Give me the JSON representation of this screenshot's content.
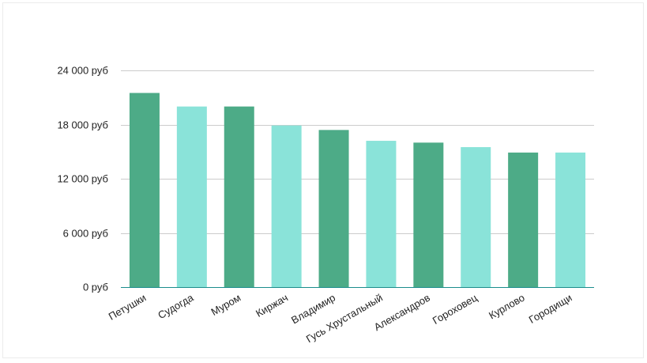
{
  "chart_data": {
    "type": "bar",
    "categories": [
      "Петушки",
      "Судогда",
      "Муром",
      "Киржач",
      "Владимир",
      "Гусь Хрустальный",
      "Александров",
      "Гороховец",
      "Курлово",
      "Городищи"
    ],
    "values": [
      21500,
      20000,
      20000,
      17900,
      17400,
      16200,
      16000,
      15500,
      14900,
      14900
    ],
    "yticks": [
      "0 руб",
      "6 000 руб",
      "12 000 руб",
      "18 000 руб",
      "24 000 руб"
    ],
    "ytick_values": [
      0,
      6000,
      12000,
      18000,
      24000
    ],
    "ylim": [
      0,
      24000
    ],
    "grid": true,
    "colors": [
      "#4dab87",
      "#8ae3d9"
    ],
    "axis_color": "#1a8c8c",
    "grid_color": "#cccccc"
  }
}
